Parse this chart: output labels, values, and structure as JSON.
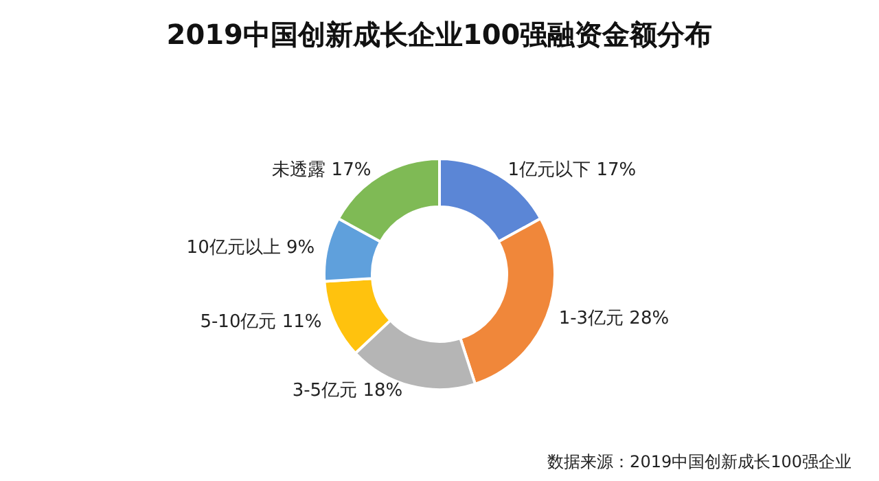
{
  "chart_data": {
    "type": "donut",
    "title": "2019中国创新成长企业100强融资金额分布",
    "categories": [
      "1亿元以下",
      "1-3亿元",
      "3-5亿元",
      "5-10亿元",
      "10亿元以上",
      "未透露"
    ],
    "values": [
      17,
      28,
      18,
      11,
      9,
      17
    ],
    "value_labels": [
      "17%",
      "28%",
      "18%",
      "11%",
      "9%",
      "17%"
    ],
    "colors": [
      "#5b86d6",
      "#f0873a",
      "#b5b5b5",
      "#ffc20e",
      "#5fa0dc",
      "#7fba55"
    ],
    "annotations": [
      "数据来源：2019中国创新成长100强企业"
    ],
    "legend": false
  }
}
